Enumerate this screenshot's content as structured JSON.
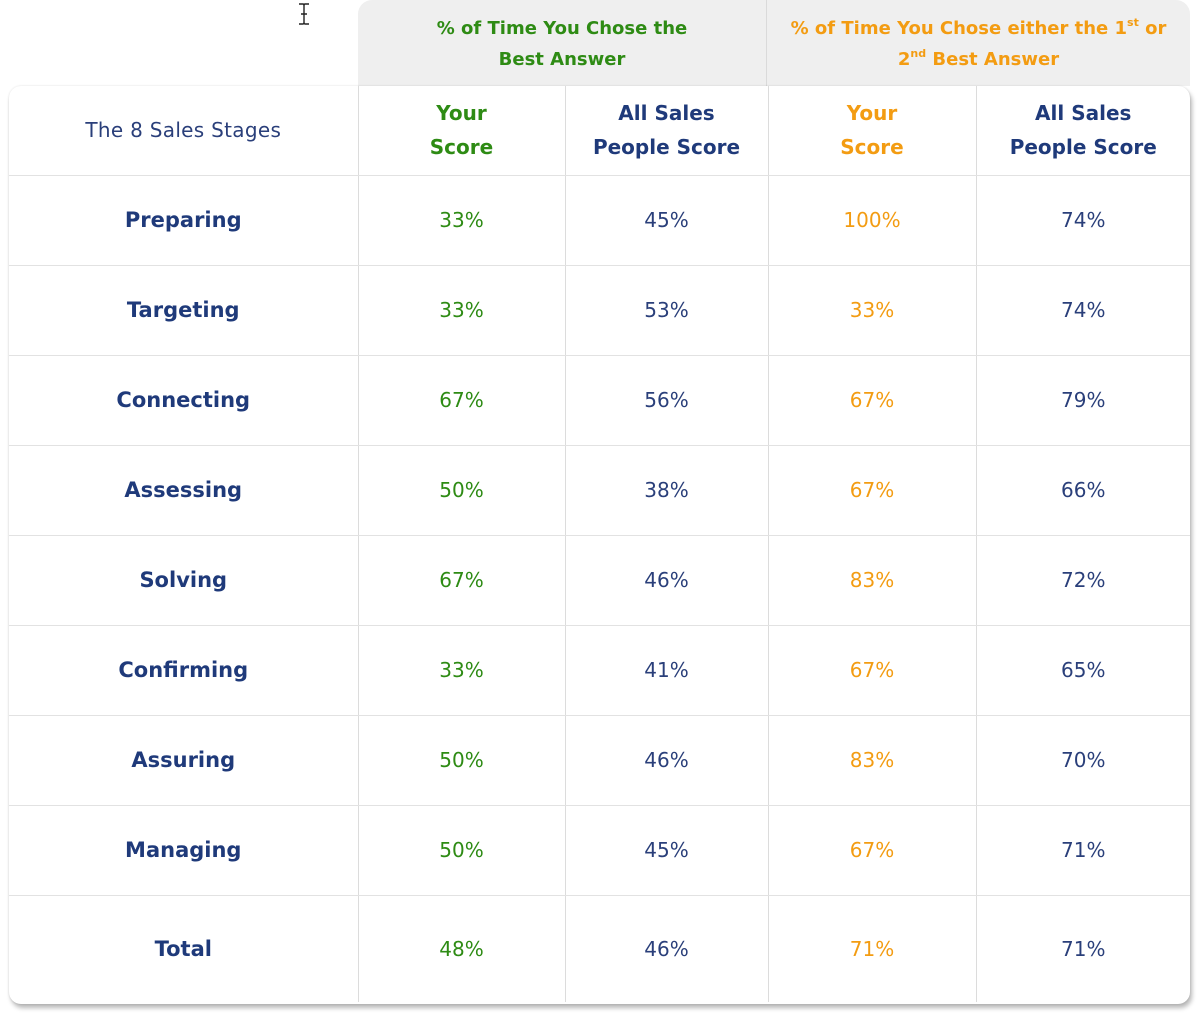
{
  "header": {
    "group1_line1": "% of Time You Chose the",
    "group1_line2": "Best Answer",
    "group2_line1_pre": "% of Time You Chose either the 1",
    "group2_sup1": "st",
    "group2_line1_post": " or",
    "group2_line2_pre": "2",
    "group2_sup2": "nd",
    "group2_line2_post": " Best Answer"
  },
  "columns": {
    "stage": "The 8 Sales Stages",
    "your_line1": "Your",
    "your_line2": "Score",
    "all_line1": "All Sales",
    "all_line2": "People Score",
    "your2_line1": "Your",
    "your2_line2": "Score",
    "all2_line1": "All Sales",
    "all2_line2": "People Score"
  },
  "rows": [
    {
      "stage": "Preparing",
      "best_you": "33%",
      "best_all": "45%",
      "top2_you": "100%",
      "top2_all": "74%"
    },
    {
      "stage": "Targeting",
      "best_you": "33%",
      "best_all": "53%",
      "top2_you": "33%",
      "top2_all": "74%"
    },
    {
      "stage": "Connecting",
      "best_you": "67%",
      "best_all": "56%",
      "top2_you": "67%",
      "top2_all": "79%"
    },
    {
      "stage": "Assessing",
      "best_you": "50%",
      "best_all": "38%",
      "top2_you": "67%",
      "top2_all": "66%"
    },
    {
      "stage": "Solving",
      "best_you": "67%",
      "best_all": "46%",
      "top2_you": "83%",
      "top2_all": "72%"
    },
    {
      "stage": "Confirming",
      "best_you": "33%",
      "best_all": "41%",
      "top2_you": "67%",
      "top2_all": "65%"
    },
    {
      "stage": "Assuring",
      "best_you": "50%",
      "best_all": "46%",
      "top2_you": "83%",
      "top2_all": "70%"
    },
    {
      "stage": "Managing",
      "best_you": "50%",
      "best_all": "45%",
      "top2_you": "67%",
      "top2_all": "71%"
    }
  ],
  "total": {
    "stage": "Total",
    "best_you": "48%",
    "best_all": "46%",
    "top2_you": "71%",
    "top2_all": "71%"
  },
  "colors": {
    "green": "#2e8b14",
    "orange": "#f39c12",
    "navy": "#1f3a7a"
  },
  "icons": {
    "cursor": "text-cursor-icon"
  }
}
